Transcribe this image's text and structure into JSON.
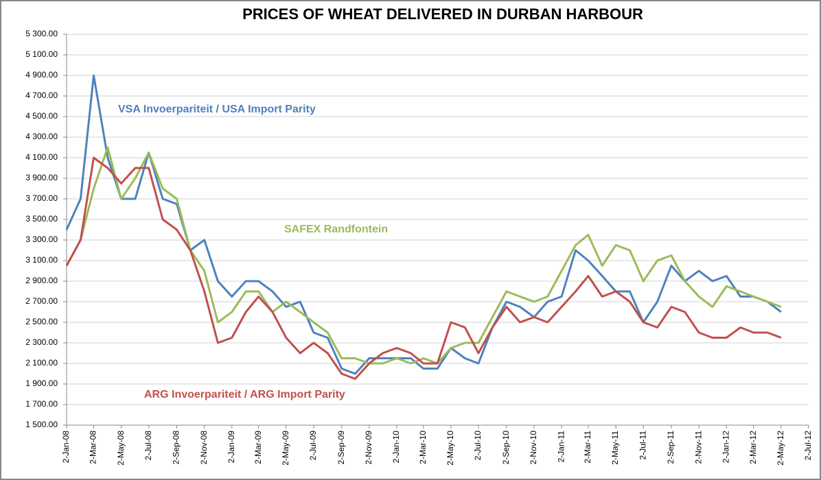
{
  "chart_data": {
    "type": "line",
    "title": "PRICES OF WHEAT DELIVERED IN DURBAN HARBOUR",
    "x": [
      "2008-01-02",
      "2008-02-02",
      "2008-03-02",
      "2008-04-02",
      "2008-05-02",
      "2008-06-02",
      "2008-07-02",
      "2008-08-02",
      "2008-09-02",
      "2008-10-02",
      "2008-11-02",
      "2008-12-02",
      "2009-01-02",
      "2009-02-02",
      "2009-03-02",
      "2009-04-02",
      "2009-05-02",
      "2009-06-02",
      "2009-07-02",
      "2009-08-02",
      "2009-09-02",
      "2009-10-02",
      "2009-11-02",
      "2009-12-02",
      "2010-01-02",
      "2010-02-02",
      "2010-03-02",
      "2010-04-02",
      "2010-05-02",
      "2010-06-02",
      "2010-07-02",
      "2010-08-02",
      "2010-09-02",
      "2010-10-02",
      "2010-11-02",
      "2010-12-02",
      "2011-01-02",
      "2011-02-02",
      "2011-03-02",
      "2011-04-02",
      "2011-05-02",
      "2011-06-02",
      "2011-07-02",
      "2011-08-02",
      "2011-09-02",
      "2011-10-02",
      "2011-11-02",
      "2011-12-02",
      "2012-01-02",
      "2012-02-02",
      "2012-03-02",
      "2012-04-02",
      "2012-05-02"
    ],
    "series": [
      {
        "name": "VSA Invoerpariteit  / USA Import Parity",
        "color": "#4f81bd",
        "values": [
          3400,
          3700,
          4900,
          4100,
          3700,
          3700,
          4150,
          3700,
          3650,
          3200,
          3300,
          2900,
          2750,
          2900,
          2900,
          2800,
          2650,
          2700,
          2400,
          2350,
          2050,
          2000,
          2150,
          2150,
          2150,
          2150,
          2050,
          2050,
          2250,
          2150,
          2100,
          2450,
          2700,
          2650,
          2550,
          2700,
          2750,
          3200,
          3100,
          2950,
          2800,
          2800,
          2500,
          2700,
          3050,
          2900,
          3000,
          2900,
          2950,
          2750,
          2750,
          2700,
          2600
        ]
      },
      {
        "name": "SAFEX Randfontein",
        "color": "#9bbb59",
        "values": [
          3050,
          3300,
          3800,
          4200,
          3700,
          3900,
          4150,
          3800,
          3700,
          3200,
          3000,
          2500,
          2600,
          2800,
          2800,
          2600,
          2700,
          2600,
          2500,
          2400,
          2150,
          2150,
          2100,
          2100,
          2150,
          2100,
          2150,
          2100,
          2250,
          2300,
          2300,
          2550,
          2800,
          2750,
          2700,
          2750,
          3000,
          3250,
          3350,
          3050,
          3250,
          3200,
          2900,
          3100,
          3150,
          2900,
          2750,
          2650,
          2850,
          2800,
          2750,
          2700,
          2650
        ]
      },
      {
        "name": "ARG Invoerpariteit / ARG Import Parity",
        "color": "#c0504d",
        "values": [
          3050,
          3300,
          4100,
          4000,
          3850,
          4000,
          4000,
          3500,
          3400,
          3200,
          2800,
          2300,
          2350,
          2600,
          2750,
          2600,
          2350,
          2200,
          2300,
          2200,
          2000,
          1950,
          2100,
          2200,
          2250,
          2200,
          2100,
          2100,
          2500,
          2450,
          2200,
          2450,
          2650,
          2500,
          2550,
          2500,
          2650,
          2800,
          2950,
          2750,
          2800,
          2700,
          2500,
          2450,
          2650,
          2600,
          2400,
          2350,
          2350,
          2450,
          2400,
          2400,
          2350
        ]
      }
    ],
    "xlim": [
      "2008-01-02",
      "2012-07-02"
    ],
    "xticks": [
      {
        "value": "2008-01-02",
        "label": "2-Jan-08"
      },
      {
        "value": "2008-03-02",
        "label": "2-Mar-08"
      },
      {
        "value": "2008-05-02",
        "label": "2-May-08"
      },
      {
        "value": "2008-07-02",
        "label": "2-Jul-08"
      },
      {
        "value": "2008-09-02",
        "label": "2-Sep-08"
      },
      {
        "value": "2008-11-02",
        "label": "2-Nov-08"
      },
      {
        "value": "2009-01-02",
        "label": "2-Jan-09"
      },
      {
        "value": "2009-03-02",
        "label": "2-Mar-09"
      },
      {
        "value": "2009-05-02",
        "label": "2-May-09"
      },
      {
        "value": "2009-07-02",
        "label": "2-Jul-09"
      },
      {
        "value": "2009-09-02",
        "label": "2-Sep-09"
      },
      {
        "value": "2009-11-02",
        "label": "2-Nov-09"
      },
      {
        "value": "2010-01-02",
        "label": "2-Jan-10"
      },
      {
        "value": "2010-03-02",
        "label": "2-Mar-10"
      },
      {
        "value": "2010-05-02",
        "label": "2-May-10"
      },
      {
        "value": "2010-07-02",
        "label": "2-Jul-10"
      },
      {
        "value": "2010-09-02",
        "label": "2-Sep-10"
      },
      {
        "value": "2010-11-02",
        "label": "2-Nov-10"
      },
      {
        "value": "2011-01-02",
        "label": "2-Jan-11"
      },
      {
        "value": "2011-03-02",
        "label": "2-Mar-11"
      },
      {
        "value": "2011-05-02",
        "label": "2-May-11"
      },
      {
        "value": "2011-07-02",
        "label": "2-Jul-11"
      },
      {
        "value": "2011-09-02",
        "label": "2-Sep-11"
      },
      {
        "value": "2011-11-02",
        "label": "2-Nov-11"
      },
      {
        "value": "2012-01-02",
        "label": "2-Jan-12"
      },
      {
        "value": "2012-03-02",
        "label": "2-Mar-12"
      },
      {
        "value": "2012-05-02",
        "label": "2-May-12"
      },
      {
        "value": "2012-07-02",
        "label": "2-Jul-12"
      }
    ],
    "ylim": [
      1500,
      5300
    ],
    "yticks": [
      {
        "value": 1500,
        "label": "1 500.00"
      },
      {
        "value": 1700,
        "label": "1 700.00"
      },
      {
        "value": 1900,
        "label": "1 900.00"
      },
      {
        "value": 2100,
        "label": "2 100.00"
      },
      {
        "value": 2300,
        "label": "2 300.00"
      },
      {
        "value": 2500,
        "label": "2 500.00"
      },
      {
        "value": 2700,
        "label": "2 700.00"
      },
      {
        "value": 2900,
        "label": "2 900.00"
      },
      {
        "value": 3100,
        "label": "3 100.00"
      },
      {
        "value": 3300,
        "label": "3 300.00"
      },
      {
        "value": 3500,
        "label": "3 500.00"
      },
      {
        "value": 3700,
        "label": "3 700.00"
      },
      {
        "value": 3900,
        "label": "3 900.00"
      },
      {
        "value": 4100,
        "label": "4 100.00"
      },
      {
        "value": 4300,
        "label": "4 300.00"
      },
      {
        "value": 4500,
        "label": "4 500.00"
      },
      {
        "value": 4700,
        "label": "4 700.00"
      },
      {
        "value": 4900,
        "label": "4 900.00"
      },
      {
        "value": 5100,
        "label": "5 100.00"
      },
      {
        "value": 5300,
        "label": "5 300.00"
      }
    ],
    "grid": true
  }
}
